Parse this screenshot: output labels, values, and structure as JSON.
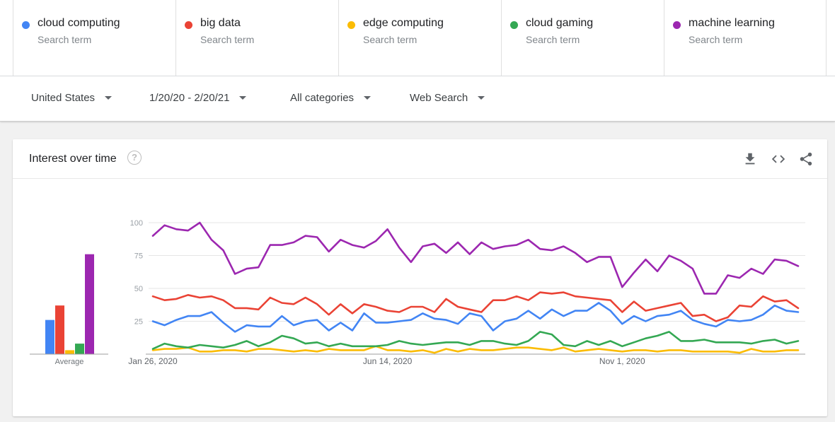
{
  "terms": [
    {
      "name": "cloud computing",
      "sub": "Search term",
      "color": "#4285f4"
    },
    {
      "name": "big data",
      "sub": "Search term",
      "color": "#ea4335"
    },
    {
      "name": "edge computing",
      "sub": "Search term",
      "color": "#fbbc04"
    },
    {
      "name": "cloud gaming",
      "sub": "Search term",
      "color": "#34a853"
    },
    {
      "name": "machine learning",
      "sub": "Search term",
      "color": "#9c27b0"
    }
  ],
  "filters": {
    "region": "United States",
    "date_range": "1/20/20 - 2/20/21",
    "category": "All categories",
    "search_type": "Web Search"
  },
  "card": {
    "title": "Interest over time",
    "icons": [
      "help-icon",
      "download-icon",
      "embed-icon",
      "share-icon"
    ]
  },
  "chart_data": {
    "type": "line",
    "ylim": [
      0,
      100
    ],
    "yticks": [
      25,
      50,
      75,
      100
    ],
    "xtick_labels": [
      "Jan 26, 2020",
      "Jun 14, 2020",
      "Nov 1, 2020"
    ],
    "xtick_indices": [
      0,
      20,
      40
    ],
    "average_label": "Average",
    "averages": [
      {
        "name": "cloud computing",
        "value": 26,
        "color": "#4285f4"
      },
      {
        "name": "big data",
        "value": 37,
        "color": "#ea4335"
      },
      {
        "name": "edge computing",
        "value": 3,
        "color": "#fbbc04"
      },
      {
        "name": "cloud gaming",
        "value": 8,
        "color": "#34a853"
      },
      {
        "name": "machine learning",
        "value": 76,
        "color": "#9c27b0"
      }
    ],
    "series": [
      {
        "name": "cloud computing",
        "color": "#4285f4",
        "values": [
          25,
          22,
          26,
          29,
          29,
          32,
          24,
          17,
          22,
          21,
          21,
          29,
          22,
          25,
          26,
          18,
          24,
          18,
          31,
          24,
          24,
          25,
          26,
          31,
          27,
          26,
          23,
          31,
          29,
          18,
          25,
          27,
          33,
          27,
          34,
          29,
          33,
          33,
          39,
          33,
          23,
          29,
          25,
          29,
          30,
          33,
          26,
          23,
          21,
          26,
          25,
          26,
          30,
          37,
          33,
          32
        ]
      },
      {
        "name": "big data",
        "color": "#ea4335",
        "values": [
          44,
          41,
          42,
          45,
          43,
          44,
          41,
          35,
          35,
          34,
          43,
          39,
          38,
          43,
          38,
          30,
          38,
          31,
          38,
          36,
          33,
          32,
          36,
          36,
          32,
          42,
          36,
          34,
          32,
          41,
          41,
          44,
          41,
          47,
          46,
          47,
          44,
          43,
          42,
          41,
          32,
          40,
          33,
          35,
          37,
          39,
          29,
          30,
          25,
          28,
          37,
          36,
          44,
          40,
          41,
          35
        ]
      },
      {
        "name": "edge computing",
        "color": "#fbbc04",
        "values": [
          3,
          4,
          4,
          5,
          2,
          2,
          3,
          3,
          2,
          4,
          4,
          3,
          2,
          3,
          2,
          4,
          3,
          3,
          3,
          6,
          3,
          3,
          2,
          3,
          1,
          4,
          2,
          4,
          3,
          3,
          4,
          5,
          5,
          4,
          3,
          5,
          2,
          3,
          4,
          3,
          2,
          3,
          3,
          2,
          3,
          3,
          2,
          2,
          2,
          2,
          1,
          4,
          2,
          2,
          3,
          3
        ]
      },
      {
        "name": "cloud gaming",
        "color": "#34a853",
        "values": [
          4,
          8,
          6,
          5,
          7,
          6,
          5,
          7,
          10,
          6,
          9,
          14,
          12,
          8,
          9,
          6,
          8,
          6,
          6,
          6,
          7,
          10,
          8,
          7,
          8,
          9,
          9,
          7,
          10,
          10,
          8,
          7,
          10,
          17,
          15,
          7,
          6,
          10,
          7,
          10,
          6,
          9,
          12,
          14,
          17,
          10,
          10,
          11,
          9,
          9,
          9,
          8,
          10,
          11,
          8,
          10
        ]
      },
      {
        "name": "machine learning",
        "color": "#9c27b0",
        "values": [
          90,
          98,
          95,
          94,
          100,
          87,
          79,
          61,
          65,
          66,
          83,
          83,
          85,
          90,
          89,
          78,
          87,
          83,
          81,
          86,
          95,
          81,
          70,
          82,
          84,
          77,
          85,
          76,
          85,
          80,
          82,
          83,
          87,
          80,
          79,
          82,
          77,
          70,
          74,
          74,
          51,
          62,
          72,
          63,
          75,
          71,
          65,
          46,
          46,
          60,
          58,
          65,
          61,
          72,
          71,
          67
        ]
      }
    ]
  }
}
